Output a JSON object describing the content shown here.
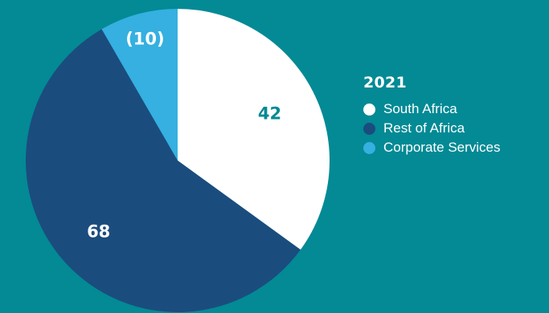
{
  "colors": {
    "background": "#038A95",
    "south_africa": "#FFFFFF",
    "rest_of_africa": "#1B4C7E",
    "corporate_services": "#35B0E0",
    "label_on_light": "#038A95",
    "label_on_dark": "#FFFFFF"
  },
  "legend": {
    "title": "2021",
    "items": [
      {
        "label": "South Africa",
        "color": "#FFFFFF"
      },
      {
        "label": "Rest of Africa",
        "color": "#1B4C7E"
      },
      {
        "label": "Corporate Services",
        "color": "#35B0E0"
      }
    ]
  },
  "chart_data": {
    "type": "pie",
    "title": "2021",
    "start": "top, clockwise",
    "legend_position": "right",
    "slices": [
      {
        "name": "South Africa",
        "value": 42,
        "display": "42",
        "color": "#FFFFFF",
        "label_color": "#038A95"
      },
      {
        "name": "Rest of Africa",
        "value": 68,
        "display": "68",
        "color": "#1B4C7E",
        "label_color": "#FFFFFF"
      },
      {
        "name": "Corporate Services",
        "value": 10,
        "display": "(10)",
        "color": "#35B0E0",
        "label_color": "#FFFFFF"
      }
    ]
  }
}
